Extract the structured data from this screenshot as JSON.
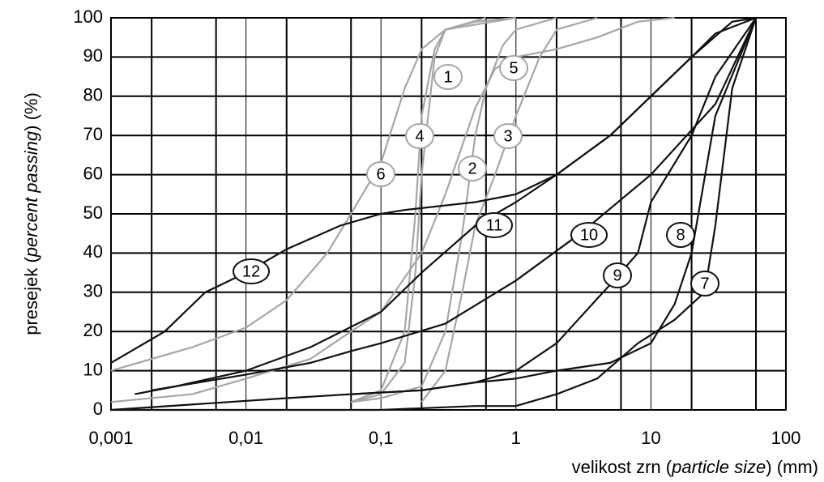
{
  "chart_data": {
    "type": "line",
    "x_scale": "log",
    "y_label": [
      "presejek (",
      "percent passing",
      ") (%)"
    ],
    "x_label": [
      "velikost zrn (",
      "particle size",
      ") (mm)"
    ],
    "xlim": [
      0.001,
      100
    ],
    "ylim": [
      0,
      100
    ],
    "xticks": [
      {
        "value": 0.001,
        "label": "0,001"
      },
      {
        "value": 0.01,
        "label": "0,01"
      },
      {
        "value": 0.1,
        "label": "0,1"
      },
      1,
      10,
      100
    ],
    "xgrid_extra": [
      0.002,
      0.006,
      0.02,
      0.06,
      0.2,
      0.6,
      2,
      6,
      20,
      60
    ],
    "yticks": [
      0,
      10,
      20,
      30,
      40,
      50,
      60,
      70,
      80,
      90,
      100
    ],
    "grid": true,
    "series": [
      {
        "name": "1",
        "color": "#a6a6a6",
        "x": [
          0.06,
          0.1,
          0.15,
          0.18,
          0.2,
          0.25,
          0.3,
          0.5,
          1
        ],
        "values": [
          2,
          4,
          12,
          35,
          60,
          90,
          97,
          99,
          100
        ]
      },
      {
        "name": "2",
        "color": "#a6a6a6",
        "x": [
          0.06,
          0.1,
          0.2,
          0.3,
          0.4,
          0.5,
          0.6,
          0.8,
          1,
          2
        ],
        "values": [
          2,
          3,
          6,
          20,
          45,
          70,
          82,
          93,
          97,
          100
        ]
      },
      {
        "name": "3",
        "color": "#a6a6a6",
        "x": [
          0.2,
          0.3,
          0.4,
          0.5,
          0.7,
          1,
          1.5,
          2,
          4
        ],
        "values": [
          2,
          10,
          30,
          47,
          60,
          75,
          90,
          97,
          100
        ]
      },
      {
        "name": "4",
        "color": "#a6a6a6",
        "x": [
          0.06,
          0.1,
          0.15,
          0.18,
          0.2,
          0.25,
          0.3,
          0.6
        ],
        "values": [
          2,
          5,
          20,
          50,
          75,
          92,
          97,
          100
        ]
      },
      {
        "name": "5",
        "color": "#a6a6a6",
        "x": [
          0.001,
          0.004,
          0.01,
          0.03,
          0.06,
          0.1,
          0.2,
          0.3,
          0.5,
          0.7,
          1,
          2,
          4,
          8,
          15
        ],
        "values": [
          2,
          4,
          8,
          13,
          20,
          25,
          40,
          55,
          77,
          87,
          90,
          92,
          95,
          99,
          100
        ]
      },
      {
        "name": "6",
        "color": "#a6a6a6",
        "x": [
          0.001,
          0.002,
          0.004,
          0.01,
          0.02,
          0.04,
          0.06,
          0.1,
          0.15,
          0.2,
          0.3,
          1
        ],
        "values": [
          10,
          13,
          16,
          21,
          28,
          40,
          50,
          63,
          82,
          92,
          97,
          100
        ]
      },
      {
        "name": "7",
        "color": "#111111",
        "x": [
          0.001,
          0.1,
          0.5,
          1,
          2,
          4,
          8,
          15,
          25,
          30,
          40,
          60
        ],
        "values": [
          0,
          0,
          1,
          1,
          4,
          8,
          17,
          23,
          30,
          47,
          82,
          100
        ]
      },
      {
        "name": "8",
        "color": "#111111",
        "x": [
          0.001,
          0.02,
          0.06,
          0.2,
          0.5,
          1,
          2,
          5,
          10,
          15,
          20,
          30,
          60
        ],
        "values": [
          0,
          3,
          4,
          5,
          7,
          8,
          10,
          12,
          17,
          27,
          40,
          75,
          100
        ]
      },
      {
        "name": "9",
        "color": "#111111",
        "x": [
          0.06,
          0.2,
          0.5,
          1,
          2,
          5,
          8,
          10,
          20,
          30,
          60
        ],
        "values": [
          4,
          5,
          7,
          10,
          17,
          32,
          40,
          53,
          70,
          85,
          100
        ]
      },
      {
        "name": "10",
        "color": "#111111",
        "x": [
          0.002,
          0.01,
          0.03,
          0.06,
          0.1,
          0.3,
          1,
          3,
          10,
          30,
          60
        ],
        "values": [
          5,
          9,
          12,
          15,
          17,
          22,
          33,
          45,
          60,
          78,
          100
        ]
      },
      {
        "name": "11",
        "color": "#111111",
        "x": [
          0.0015,
          0.003,
          0.01,
          0.03,
          0.1,
          0.2,
          0.5,
          1,
          2,
          5,
          10,
          20,
          30,
          60
        ],
        "values": [
          4,
          6,
          10,
          16,
          25,
          35,
          47,
          53,
          60,
          70,
          80,
          90,
          96,
          100
        ]
      },
      {
        "name": "12",
        "color": "#111111",
        "x": [
          0.001,
          0.0025,
          0.005,
          0.01,
          0.02,
          0.05,
          0.1,
          0.15,
          0.5,
          1,
          2,
          5,
          10,
          20,
          40,
          60
        ],
        "values": [
          12,
          20,
          30,
          35,
          41,
          47,
          50,
          51,
          53,
          55,
          60,
          70,
          80,
          90,
          99,
          100
        ]
      }
    ]
  }
}
